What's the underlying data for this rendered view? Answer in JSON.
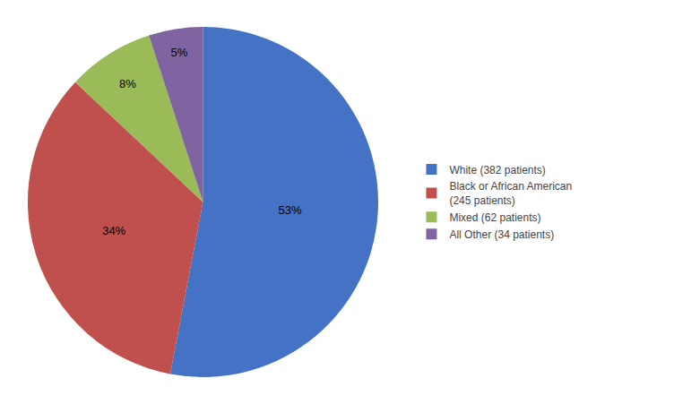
{
  "chart_data": {
    "type": "pie",
    "categories": [
      "White (382 patients)",
      "Black or African American\n(245 patients)",
      "Mixed (62 patients)",
      "All Other (34 patients)"
    ],
    "values": [
      53,
      34,
      8,
      5
    ],
    "value_labels": [
      "53%",
      "34%",
      "8%",
      "5%"
    ],
    "colors": [
      "#4472C4",
      "#C0504D",
      "#9BBB59",
      "#8064A2"
    ],
    "data_labels": true,
    "legend": "right"
  }
}
